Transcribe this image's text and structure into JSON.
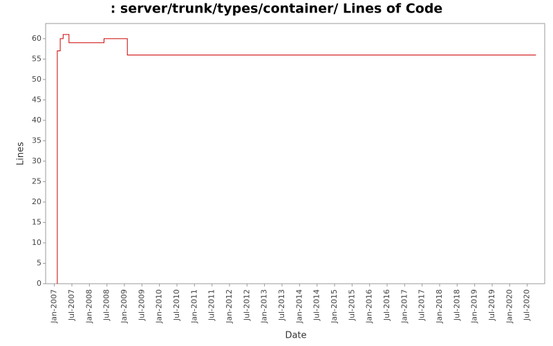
{
  "chart_data": {
    "type": "step-line",
    "title": ": server/trunk/types/container/ Lines of Code",
    "x_label": "Date",
    "y_label": "Lines",
    "x": [
      "2007-02",
      "2007-02",
      "2007-03",
      "2007-04",
      "2007-06",
      "2008-06",
      "2009-02",
      "2020-10"
    ],
    "series": [
      {
        "name": "Lines",
        "color": "#cc0000",
        "values": [
          0,
          57,
          60,
          61,
          59,
          60,
          56,
          56
        ]
      }
    ],
    "xlim": [
      "2006-10",
      "2021-01"
    ],
    "xticks": [
      {
        "value": "2007-01",
        "label": "Jan-2007"
      },
      {
        "value": "2007-07",
        "label": "Jul-2007"
      },
      {
        "value": "2008-01",
        "label": "Jan-2008"
      },
      {
        "value": "2008-07",
        "label": "Jul-2008"
      },
      {
        "value": "2009-01",
        "label": "Jan-2009"
      },
      {
        "value": "2009-07",
        "label": "Jul-2009"
      },
      {
        "value": "2010-01",
        "label": "Jan-2010"
      },
      {
        "value": "2010-07",
        "label": "Jul-2010"
      },
      {
        "value": "2011-01",
        "label": "Jan-2011"
      },
      {
        "value": "2011-07",
        "label": "Jul-2011"
      },
      {
        "value": "2012-01",
        "label": "Jan-2012"
      },
      {
        "value": "2012-07",
        "label": "Jul-2012"
      },
      {
        "value": "2013-01",
        "label": "Jan-2013"
      },
      {
        "value": "2013-07",
        "label": "Jul-2013"
      },
      {
        "value": "2014-01",
        "label": "Jan-2014"
      },
      {
        "value": "2014-07",
        "label": "Jul-2014"
      },
      {
        "value": "2015-01",
        "label": "Jan-2015"
      },
      {
        "value": "2015-07",
        "label": "Jul-2015"
      },
      {
        "value": "2016-01",
        "label": "Jan-2016"
      },
      {
        "value": "2016-07",
        "label": "Jul-2016"
      },
      {
        "value": "2017-01",
        "label": "Jan-2017"
      },
      {
        "value": "2017-07",
        "label": "Jul-2017"
      },
      {
        "value": "2018-01",
        "label": "Jan-2018"
      },
      {
        "value": "2018-07",
        "label": "Jul-2018"
      },
      {
        "value": "2019-01",
        "label": "Jan-2019"
      },
      {
        "value": "2019-07",
        "label": "Jul-2019"
      },
      {
        "value": "2020-01",
        "label": "Jan-2020"
      },
      {
        "value": "2020-07",
        "label": "Jul-2020"
      }
    ],
    "ylim": [
      0,
      63.7
    ],
    "yticks": [
      0,
      5,
      10,
      15,
      20,
      25,
      30,
      35,
      40,
      45,
      50,
      55,
      60
    ],
    "grid": false
  }
}
